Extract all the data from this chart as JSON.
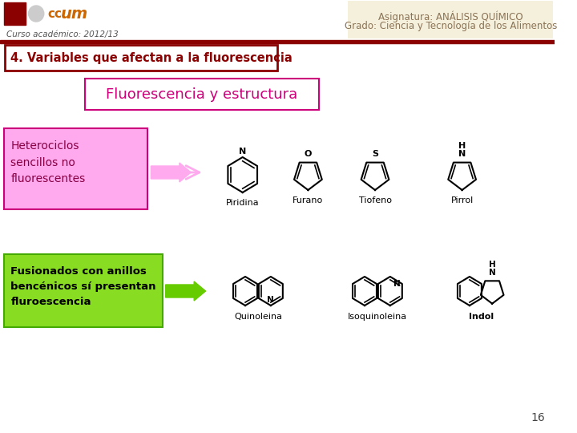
{
  "bg_color": "#ffffff",
  "header_right_bg": "#f5f0dc",
  "header_right_text1": "Asignatura: ANÁLISIS QUÍMICO",
  "header_right_text2": "Grado: Ciencia y Tecnología de los Alimentos",
  "header_right_color": "#8b7355",
  "curso_text": "Curso académico: 2012/13",
  "curso_color": "#555555",
  "separator_color": "#8b0000",
  "title_text": "4. Variables que afectan a la fluorescencia",
  "title_border_color": "#8b0000",
  "title_text_color": "#8b0000",
  "subtitle_text": "Fluorescencia y estructura",
  "subtitle_border_color": "#cc007a",
  "subtitle_text_color": "#cc007a",
  "box1_text": "Heterociclos\nsencillos no\nfluorescentes",
  "box1_bg": "#ffaaee",
  "box1_border": "#cc007a",
  "box1_text_color": "#880044",
  "box2_text": "Fusionados con anillos\nbencénicos sí presentan\nfluroescencia",
  "box2_bg": "#88dd22",
  "box2_border": "#44aa00",
  "box2_text_color": "#000000",
  "arrow1_color": "#ffaaee",
  "arrow2_color": "#66cc00",
  "page_number": "16",
  "molecules_row1": [
    "Piridina",
    "Furano",
    "Tiofeno",
    "Pirrol"
  ],
  "molecules_row2": [
    "Quinoleina",
    "Isoquinoleina",
    "Indol"
  ],
  "mol_text_color": "#000000"
}
